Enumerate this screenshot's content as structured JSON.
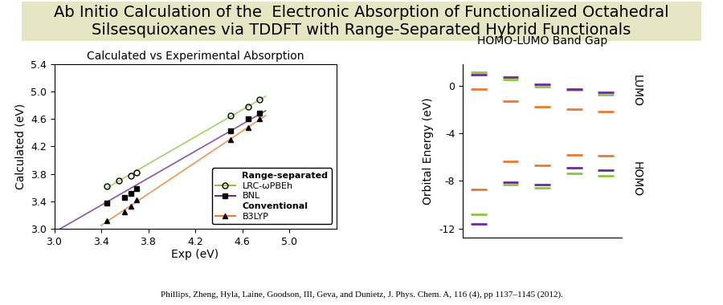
{
  "header": {
    "title": "Ab Initio Calculation of the  Electronic Absorption of Functionalized Octahedral Silsesquioxanes via TDDFT with Range-Separated Hybrid Functionals"
  },
  "chart_data": [
    {
      "type": "scatter",
      "title": "Calculated vs Experimental Absorption",
      "x_label": "Exp (eV)",
      "y_label": "Calculated (eV)",
      "xlim": [
        3.0,
        5.4
      ],
      "xticks": [
        3.0,
        3.4,
        3.8,
        4.2,
        4.6,
        5.0
      ],
      "ylim": [
        3.0,
        5.4
      ],
      "yticks": [
        3.0,
        3.4,
        3.8,
        4.2,
        4.6,
        5.0,
        5.4
      ],
      "legend": "lower right",
      "legend_groups": [
        {
          "label": "Range-separated",
          "series": [
            "LRC-ωPBEh",
            "BNL"
          ]
        },
        {
          "label": "Conventional",
          "series": [
            "B3LYP"
          ]
        }
      ],
      "series": [
        {
          "name": "LRC-ωPBEh",
          "color": "#8cc63f",
          "marker": "open_circle",
          "x": [
            3.45,
            3.55,
            3.65,
            3.7,
            4.5,
            4.65,
            4.75
          ],
          "values": [
            3.62,
            3.7,
            3.77,
            3.82,
            4.65,
            4.78,
            4.88
          ],
          "fit": {
            "x": [
              3.45,
              4.8
            ],
            "values": [
              3.6,
              4.93
            ]
          }
        },
        {
          "name": "BNL",
          "color": "#6a2c91",
          "marker": "square",
          "x": [
            3.45,
            3.6,
            3.65,
            3.7,
            4.5,
            4.65,
            4.75
          ],
          "values": [
            3.37,
            3.46,
            3.52,
            3.58,
            4.43,
            4.6,
            4.68
          ],
          "fit": {
            "x": [
              3.0,
              4.8
            ],
            "values": [
              2.95,
              4.72
            ]
          }
        },
        {
          "name": "B3LYP",
          "color": "#e97a30",
          "marker": "triangle",
          "x": [
            3.45,
            3.6,
            3.65,
            3.7,
            4.5,
            4.65,
            4.75
          ],
          "values": [
            3.12,
            3.25,
            3.33,
            3.42,
            4.3,
            4.47,
            4.6
          ],
          "fit": {
            "x": [
              3.4,
              4.8
            ],
            "values": [
              3.05,
              4.65
            ]
          }
        }
      ]
    },
    {
      "type": "energy_levels",
      "title": "HOMO-LUMO Band Gap",
      "y_label": "Orbital Energy (eV)",
      "categories": [
        null,
        null,
        null,
        null,
        null
      ],
      "ylim": [
        -12.8,
        1.8
      ],
      "yticks": [
        0,
        -4,
        -8,
        -12
      ],
      "tick_labels": "y",
      "level_labels": [
        "LUMO",
        "HOMO"
      ],
      "series": [
        {
          "color": "#8cc63f",
          "lumo": [
            1.1,
            0.5,
            -0.1,
            -0.4,
            -0.8
          ],
          "homo": [
            -10.8,
            -8.3,
            -8.6,
            -7.4,
            -7.6
          ]
        },
        {
          "color": "#6a2c91",
          "lumo": [
            0.9,
            0.7,
            0.1,
            -0.3,
            -0.6
          ],
          "homo": [
            -11.6,
            -8.1,
            -8.3,
            -6.9,
            -7.1
          ]
        },
        {
          "color": "#e97a30",
          "lumo": [
            -0.3,
            -1.3,
            -1.8,
            -2.0,
            -2.2
          ],
          "homo": [
            -8.7,
            -6.4,
            -6.7,
            -5.8,
            -5.9
          ]
        }
      ]
    }
  ],
  "footer": {
    "citation": "Phillips, Zheng, Hyla, Laine, Goodson, III, Geva, and Dunietz, J. Phys. Chem. A, 116 (4), pp 1137–1145 (2012)."
  }
}
